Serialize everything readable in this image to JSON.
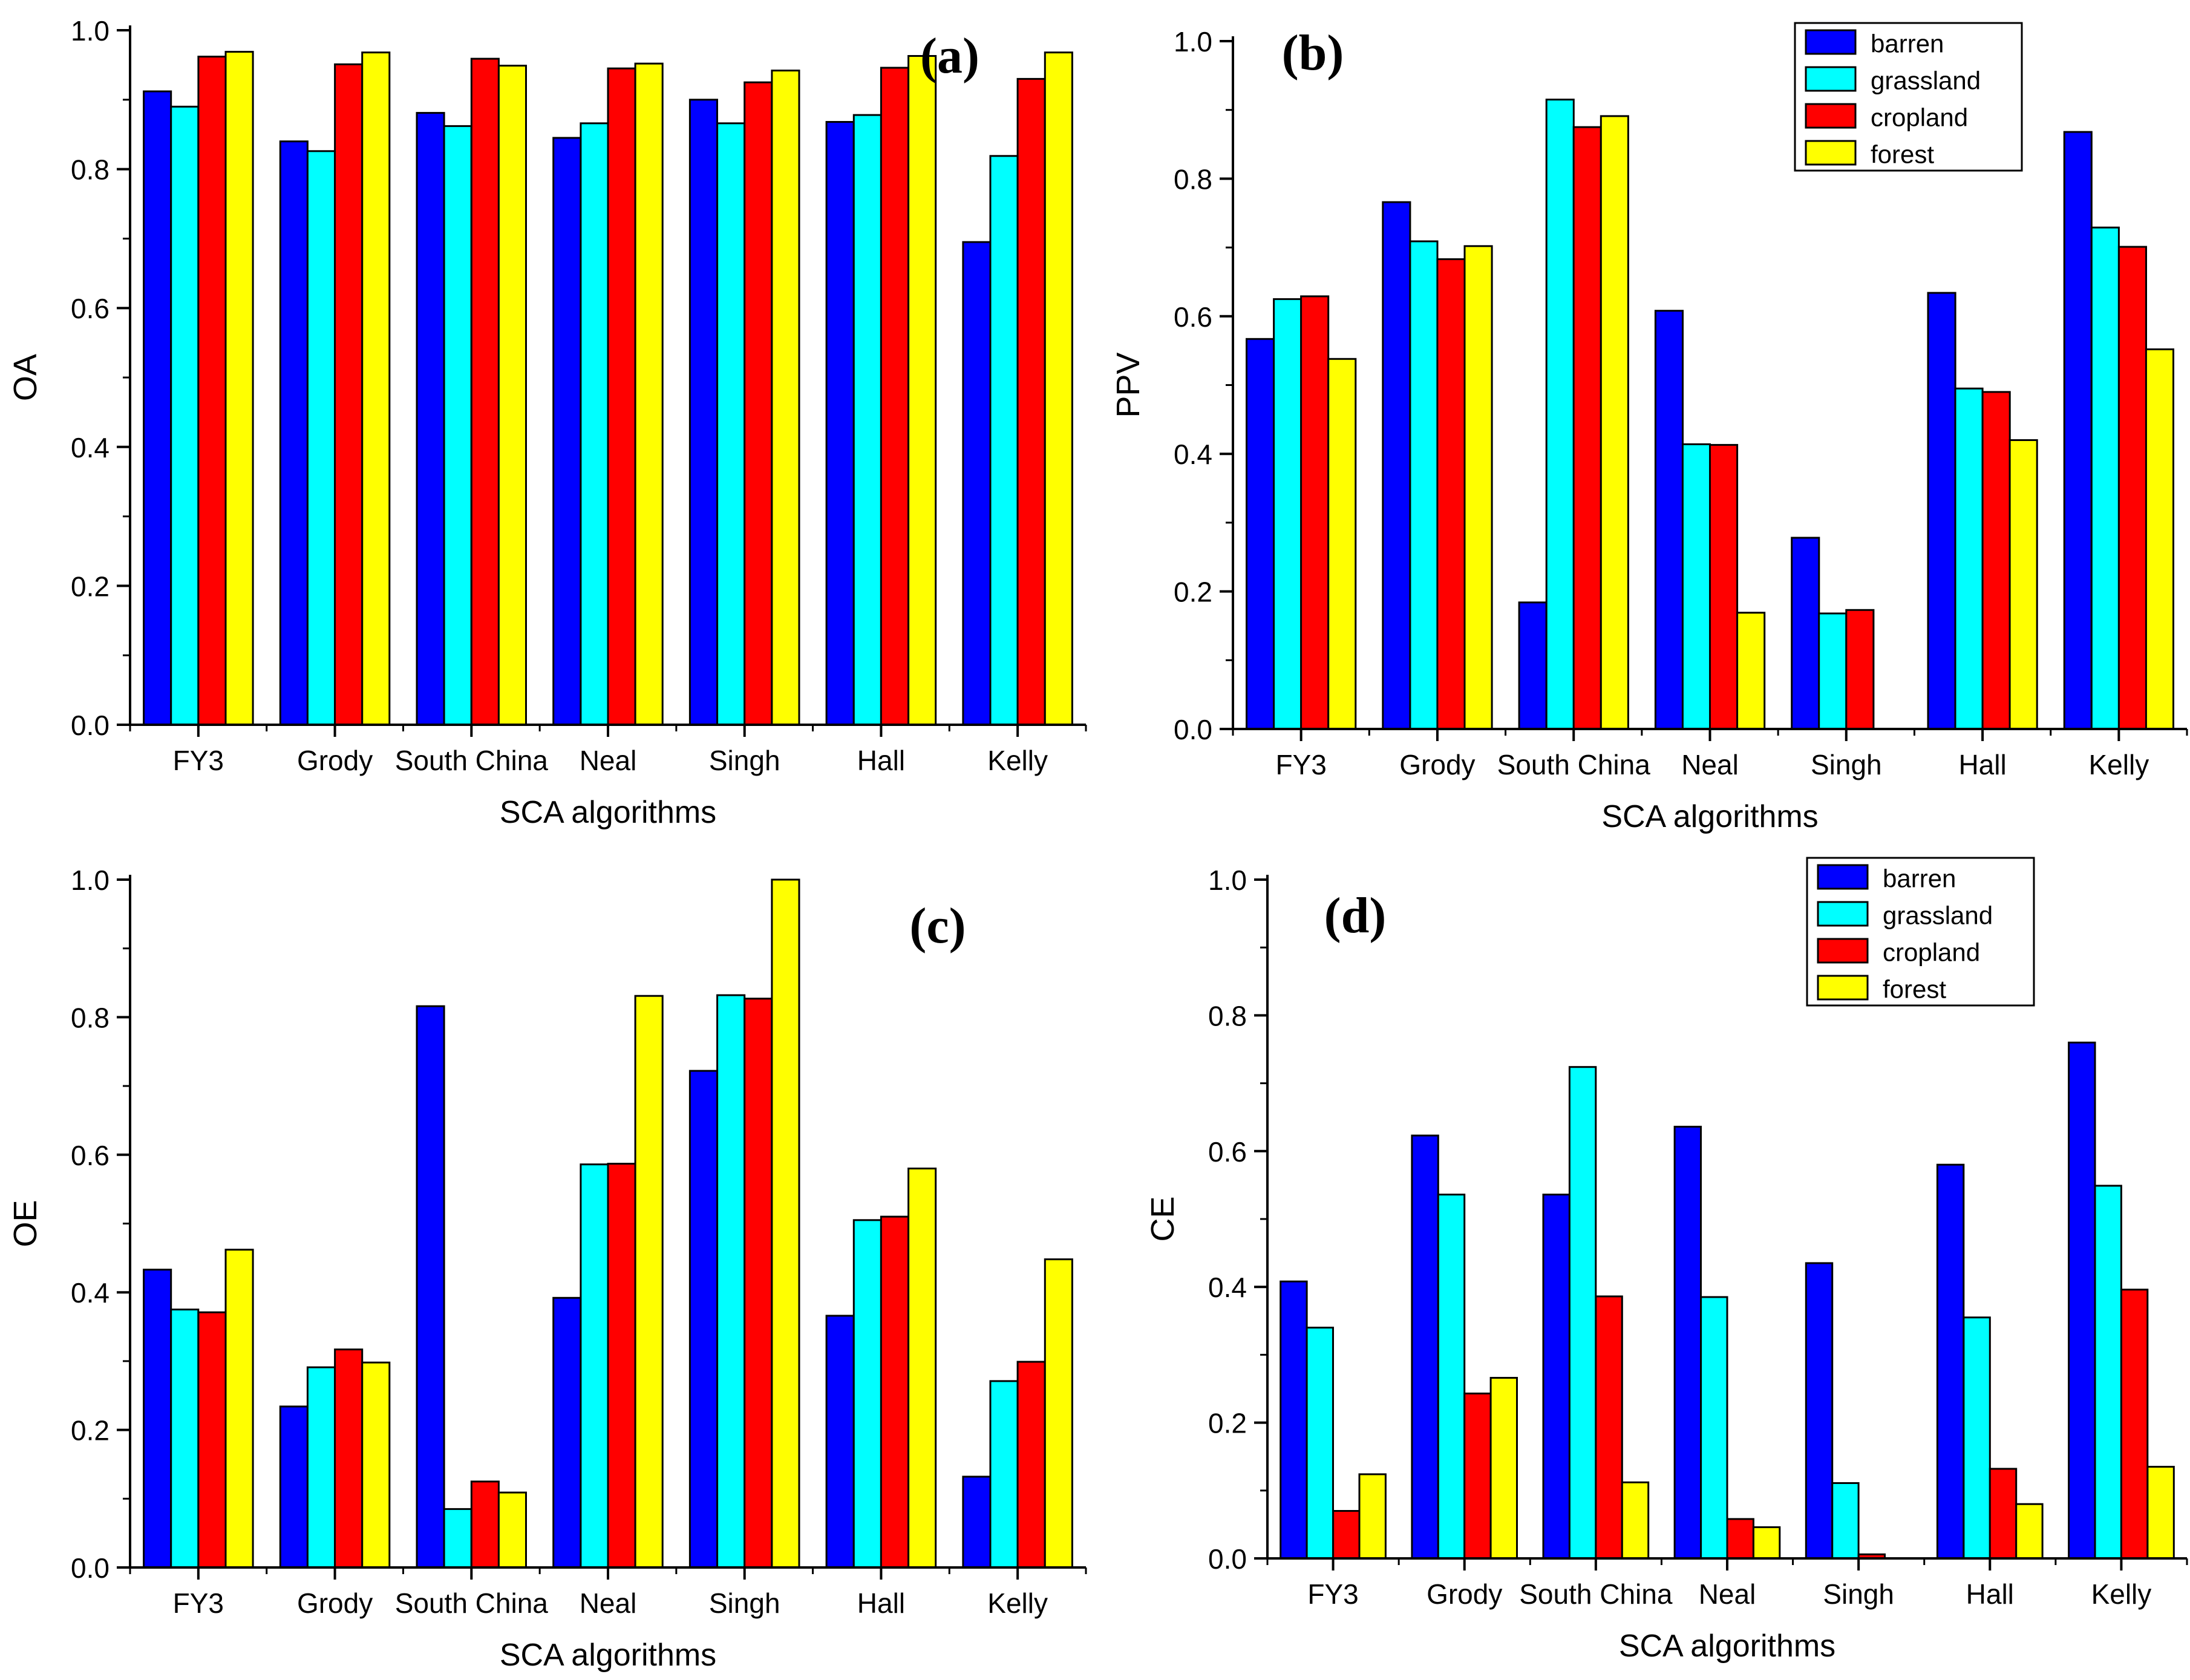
{
  "chart_data": [
    {
      "id": "a",
      "type": "bar",
      "panel_label": "(a)",
      "xlabel": "SCA algorithms",
      "ylabel": "OA",
      "ylim": [
        0,
        1.0
      ],
      "yticks": [
        "0.0",
        "0.2",
        "0.4",
        "0.6",
        "0.8",
        "1.0"
      ],
      "categories": [
        "FY3",
        "Grody",
        "South China",
        "Neal",
        "Singh",
        "Hall",
        "Kelly"
      ],
      "show_legend": false,
      "series": [
        {
          "name": "barren",
          "color": "#0000ff",
          "values": [
            0.912,
            0.84,
            0.881,
            0.845,
            0.9,
            0.868,
            0.695
          ]
        },
        {
          "name": "grassland",
          "color": "#00ffff",
          "values": [
            0.89,
            0.826,
            0.862,
            0.866,
            0.866,
            0.878,
            0.819
          ]
        },
        {
          "name": "cropland",
          "color": "#ff0000",
          "values": [
            0.962,
            0.951,
            0.959,
            0.945,
            0.925,
            0.946,
            0.93
          ]
        },
        {
          "name": "forest",
          "color": "#ffff00",
          "values": [
            0.969,
            0.968,
            0.949,
            0.952,
            0.942,
            0.963,
            0.968
          ]
        }
      ]
    },
    {
      "id": "b",
      "type": "bar",
      "panel_label": "(b)",
      "xlabel": "SCA algorithms",
      "ylabel": "PPV",
      "ylim": [
        0,
        1.0
      ],
      "yticks": [
        "0.0",
        "0.2",
        "0.4",
        "0.6",
        "0.8",
        "1.0"
      ],
      "categories": [
        "FY3",
        "Grody",
        "South China",
        "Neal",
        "Singh",
        "Hall",
        "Kelly"
      ],
      "show_legend": true,
      "series": [
        {
          "name": "barren",
          "color": "#0000ff",
          "values": [
            0.567,
            0.766,
            0.184,
            0.608,
            0.278,
            0.634,
            0.868
          ]
        },
        {
          "name": "grassland",
          "color": "#00ffff",
          "values": [
            0.625,
            0.709,
            0.915,
            0.414,
            0.168,
            0.495,
            0.729
          ]
        },
        {
          "name": "cropland",
          "color": "#ff0000",
          "values": [
            0.629,
            0.683,
            0.875,
            0.413,
            0.173,
            0.49,
            0.701
          ]
        },
        {
          "name": "forest",
          "color": "#ffff00",
          "values": [
            0.538,
            0.702,
            0.891,
            0.169,
            0.0,
            0.42,
            0.552
          ]
        }
      ]
    },
    {
      "id": "c",
      "type": "bar",
      "panel_label": "(c)",
      "xlabel": "SCA algorithms",
      "ylabel": "OE",
      "ylim": [
        0,
        1.0
      ],
      "yticks": [
        "0.0",
        "0.2",
        "0.4",
        "0.6",
        "0.8",
        "1.0"
      ],
      "categories": [
        "FY3",
        "Grody",
        "South China",
        "Neal",
        "Singh",
        "Hall",
        "Kelly"
      ],
      "show_legend": false,
      "series": [
        {
          "name": "barren",
          "color": "#0000ff",
          "values": [
            0.433,
            0.234,
            0.816,
            0.392,
            0.722,
            0.366,
            0.132
          ]
        },
        {
          "name": "grassland",
          "color": "#00ffff",
          "values": [
            0.375,
            0.291,
            0.085,
            0.586,
            0.832,
            0.505,
            0.271
          ]
        },
        {
          "name": "cropland",
          "color": "#ff0000",
          "values": [
            0.371,
            0.317,
            0.125,
            0.587,
            0.827,
            0.51,
            0.299
          ]
        },
        {
          "name": "forest",
          "color": "#ffff00",
          "values": [
            0.462,
            0.298,
            0.109,
            0.831,
            1.0,
            0.58,
            0.448
          ]
        }
      ]
    },
    {
      "id": "d",
      "type": "bar",
      "panel_label": "(d)",
      "xlabel": "SCA algorithms",
      "ylabel": "CE",
      "ylim": [
        0,
        1.0
      ],
      "yticks": [
        "0.0",
        "0.2",
        "0.4",
        "0.6",
        "0.8",
        "1.0"
      ],
      "categories": [
        "FY3",
        "Grody",
        "South China",
        "Neal",
        "Singh",
        "Hall",
        "Kelly"
      ],
      "show_legend": true,
      "series": [
        {
          "name": "barren",
          "color": "#0000ff",
          "values": [
            0.408,
            0.623,
            0.536,
            0.636,
            0.435,
            0.58,
            0.76
          ]
        },
        {
          "name": "grassland",
          "color": "#00ffff",
          "values": [
            0.34,
            0.536,
            0.724,
            0.385,
            0.111,
            0.355,
            0.549
          ]
        },
        {
          "name": "cropland",
          "color": "#ff0000",
          "values": [
            0.07,
            0.243,
            0.386,
            0.058,
            0.006,
            0.132,
            0.396
          ]
        },
        {
          "name": "forest",
          "color": "#ffff00",
          "values": [
            0.124,
            0.266,
            0.112,
            0.046,
            0.0,
            0.08,
            0.135
          ]
        }
      ]
    }
  ]
}
